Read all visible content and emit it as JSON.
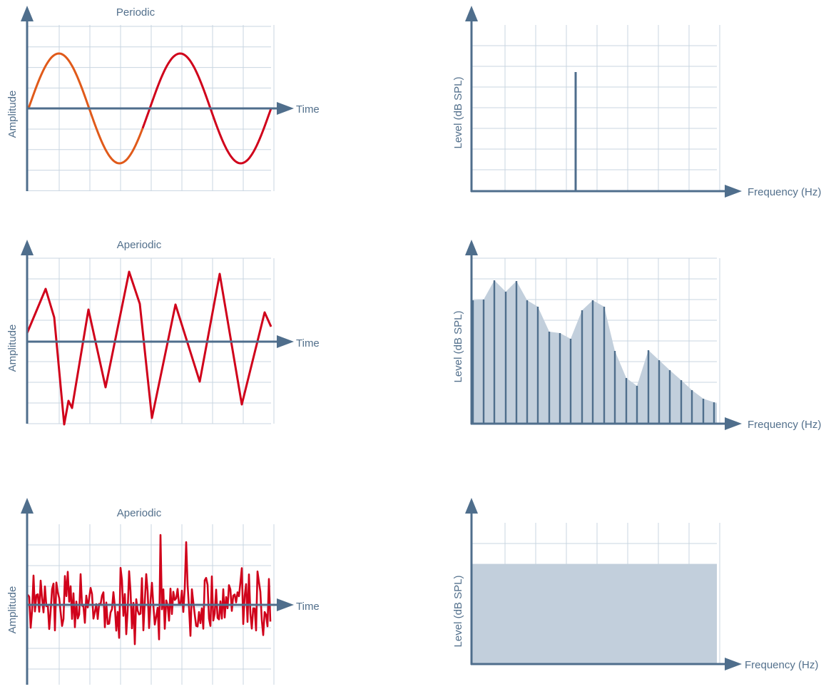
{
  "rows": [
    {
      "waveform": {
        "title": "Periodic",
        "y_label": "Amplitude",
        "x_label": "Time"
      },
      "spectrum": {
        "y_label": "Level (dB SPL)",
        "x_label": "Frequency (Hz)"
      }
    },
    {
      "waveform": {
        "title": "Aperiodic",
        "y_label": "Amplitude",
        "x_label": "Time"
      },
      "spectrum": {
        "y_label": "Level (dB SPL)",
        "x_label": "Frequency (Hz)"
      }
    },
    {
      "waveform": {
        "title": "Aperiodic",
        "y_label": "Amplitude",
        "x_label": "Time"
      },
      "spectrum": {
        "y_label": "Level (dB SPL)",
        "x_label": "Frequency (Hz)"
      }
    }
  ],
  "colors": {
    "axis": "#4f6e8c",
    "grid": "#c9d5e1",
    "wave": "#d0021b",
    "wave_start": "#e05a1a",
    "spectrum_fill": "#c2cfdc",
    "spectrum_line": "#4f6e8c"
  }
}
